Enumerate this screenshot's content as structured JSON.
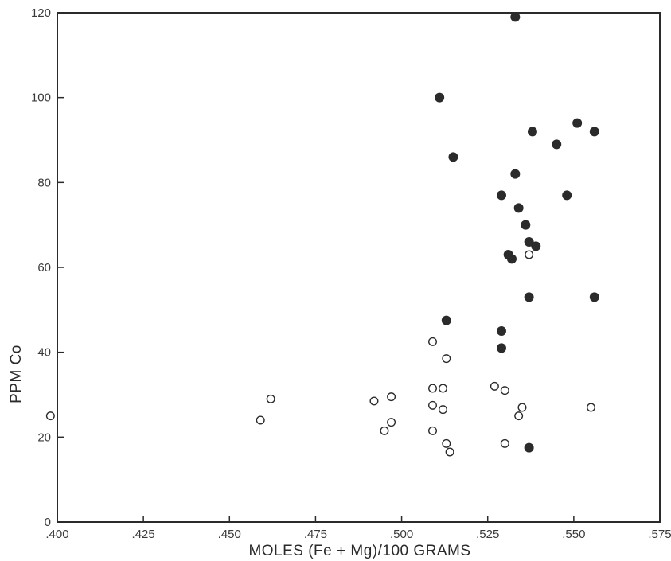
{
  "chart_data": {
    "type": "scatter",
    "title": "",
    "xlabel": "MOLES (Fe + Mg)/100 GRAMS",
    "ylabel": "PPM Co",
    "xlim": [
      0.4,
      0.575
    ],
    "ylim": [
      0,
      120
    ],
    "x_ticks": [
      ".400",
      ".425",
      ".450",
      ".475",
      ".500",
      ".525",
      ".550",
      ".575"
    ],
    "y_ticks": [
      "0",
      "20",
      "40",
      "60",
      "80",
      "100",
      "120"
    ],
    "grid": false,
    "legend": "none",
    "series": [
      {
        "marker": "filled-circle",
        "color": "#2b2b2b",
        "points": [
          [
            0.533,
            119
          ],
          [
            0.511,
            100
          ],
          [
            0.515,
            86
          ],
          [
            0.538,
            92
          ],
          [
            0.545,
            89
          ],
          [
            0.551,
            94
          ],
          [
            0.556,
            92
          ],
          [
            0.533,
            82
          ],
          [
            0.529,
            77
          ],
          [
            0.548,
            77
          ],
          [
            0.534,
            74
          ],
          [
            0.536,
            70
          ],
          [
            0.537,
            66
          ],
          [
            0.539,
            65
          ],
          [
            0.531,
            63
          ],
          [
            0.532,
            62
          ],
          [
            0.537,
            53
          ],
          [
            0.556,
            53
          ],
          [
            0.513,
            47.5
          ],
          [
            0.529,
            45
          ],
          [
            0.529,
            41
          ],
          [
            0.537,
            17.5
          ]
        ]
      },
      {
        "marker": "open-circle",
        "color": "#2b2b2b",
        "points": [
          [
            0.398,
            25
          ],
          [
            0.459,
            24
          ],
          [
            0.462,
            29
          ],
          [
            0.492,
            28.5
          ],
          [
            0.497,
            29.5
          ],
          [
            0.495,
            21.5
          ],
          [
            0.497,
            23.5
          ],
          [
            0.509,
            42.5
          ],
          [
            0.513,
            38.5
          ],
          [
            0.509,
            31.5
          ],
          [
            0.512,
            31.5
          ],
          [
            0.509,
            27.5
          ],
          [
            0.512,
            26.5
          ],
          [
            0.509,
            21.5
          ],
          [
            0.513,
            18.5
          ],
          [
            0.514,
            16.5
          ],
          [
            0.527,
            32
          ],
          [
            0.53,
            31
          ],
          [
            0.537,
            63
          ],
          [
            0.535,
            27
          ],
          [
            0.534,
            25
          ],
          [
            0.53,
            18.5
          ],
          [
            0.555,
            27
          ]
        ]
      }
    ]
  },
  "colors": {
    "ink": "#2b2b2b",
    "paper": "#ffffff"
  }
}
